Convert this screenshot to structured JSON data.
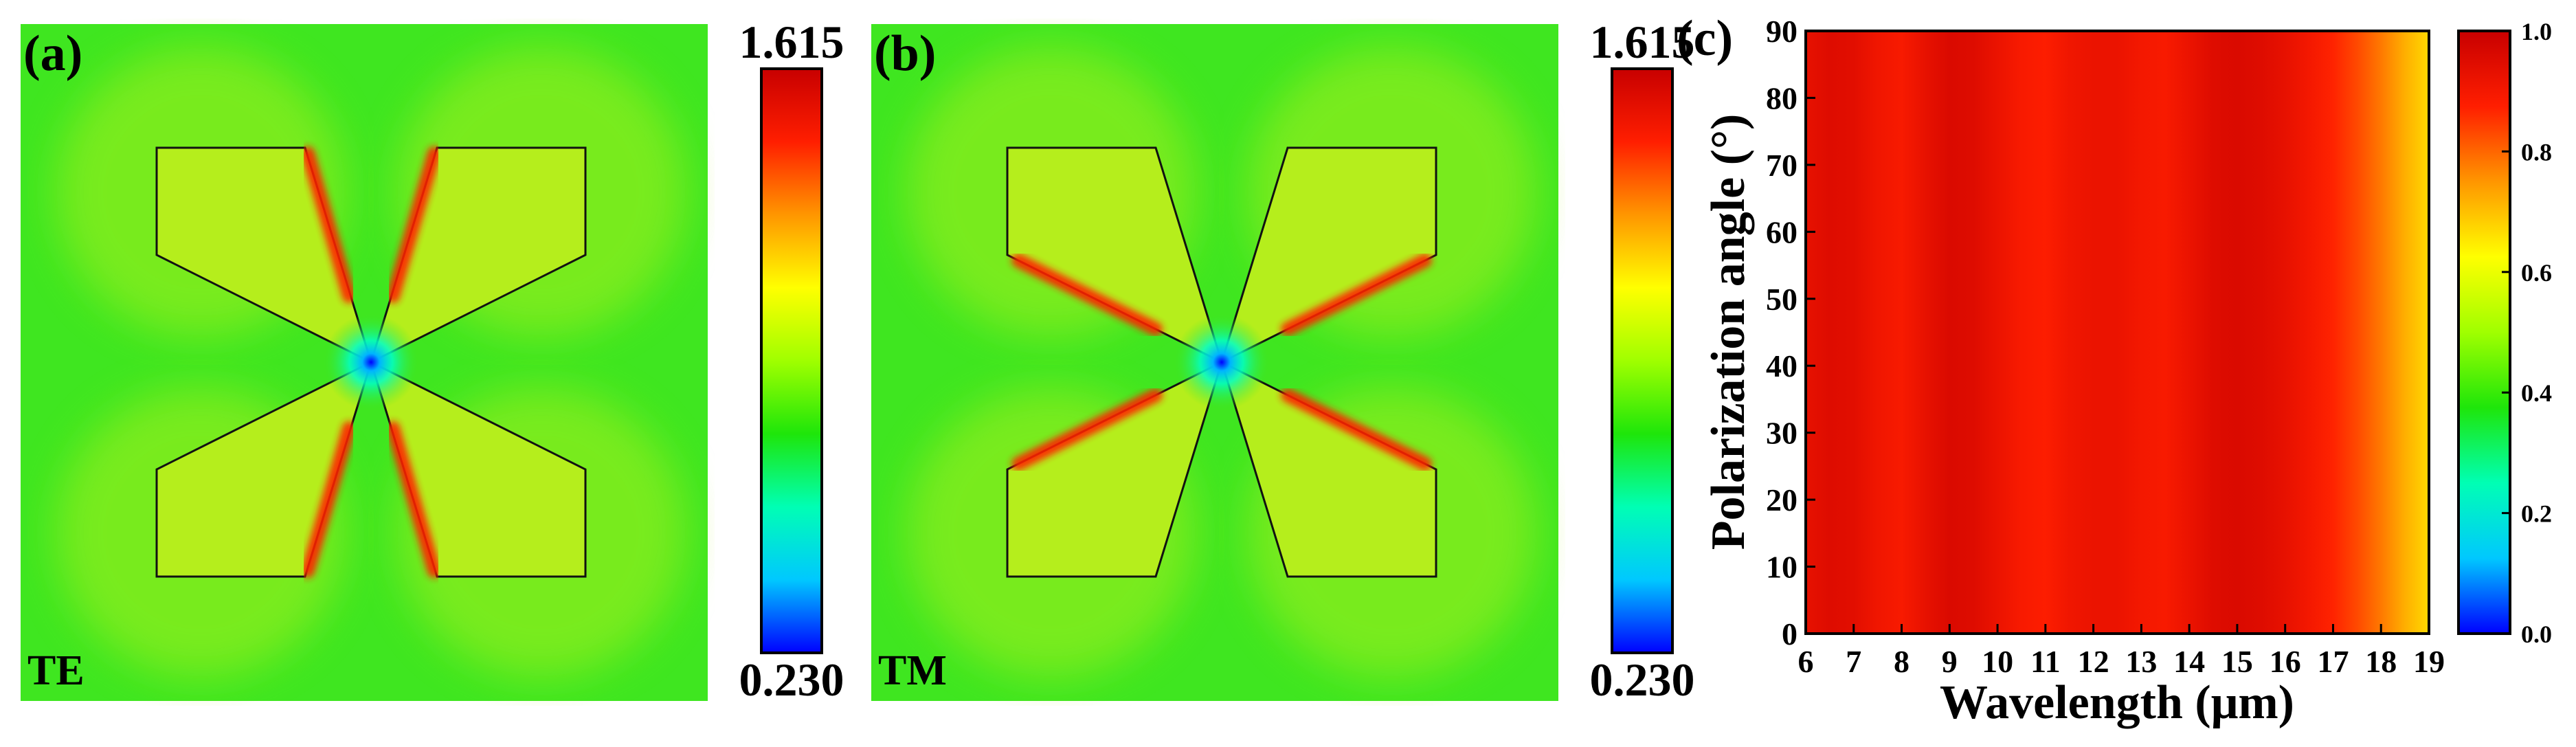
{
  "panels": {
    "a": {
      "label": "(a)",
      "mode": "TE",
      "colorbar": {
        "max": "1.615",
        "min": "0.230"
      },
      "hotspots": "outer-side edges and inner diagonal edges"
    },
    "b": {
      "label": "(b)",
      "mode": "TM",
      "colorbar": {
        "max": "1.615",
        "min": "0.230"
      },
      "hotspots": "top/bottom edges and inner horizontal-ish edges"
    },
    "c": {
      "label": "(c)"
    }
  },
  "colors": {
    "field_background": "#3fe620",
    "field_inside": "#b5ee1c",
    "hot": "#ff2000",
    "jet": [
      "#0000ff",
      "#00c8ff",
      "#00ffb4",
      "#1ee60a",
      "#a0ff00",
      "#ffff00",
      "#ff9600",
      "#ff1e00",
      "#c80000"
    ]
  },
  "chart_data": {
    "type": "heatmap",
    "xlabel": "Wavelength (μm)",
    "ylabel": "Polarization angle (°)",
    "xlim": [
      6,
      19
    ],
    "ylim": [
      0,
      90
    ],
    "x_ticks": [
      6,
      7,
      8,
      9,
      10,
      11,
      12,
      13,
      14,
      15,
      16,
      17,
      18,
      19
    ],
    "y_ticks": [
      0,
      10,
      20,
      30,
      40,
      50,
      60,
      70,
      80,
      90
    ],
    "colorbar": {
      "min": 0.0,
      "max": 1.0,
      "ticks": [
        "0.0",
        "0.2",
        "0.4",
        "0.6",
        "0.8",
        "1.0"
      ]
    },
    "absorption_vs_wavelength": {
      "x": [
        6.0,
        6.5,
        7.0,
        7.5,
        8.0,
        8.5,
        9.0,
        9.5,
        10.0,
        10.5,
        11.0,
        11.5,
        12.0,
        12.5,
        13.0,
        13.5,
        14.0,
        14.5,
        15.0,
        15.5,
        16.0,
        16.5,
        17.0,
        17.5,
        18.0,
        18.5,
        19.0
      ],
      "values": [
        0.93,
        0.95,
        0.94,
        0.91,
        0.89,
        0.93,
        0.96,
        0.95,
        0.92,
        0.89,
        0.88,
        0.91,
        0.92,
        0.92,
        0.9,
        0.89,
        0.92,
        0.95,
        0.96,
        0.95,
        0.93,
        0.9,
        0.87,
        0.83,
        0.78,
        0.72,
        0.67
      ]
    },
    "polarization_independent": true
  }
}
